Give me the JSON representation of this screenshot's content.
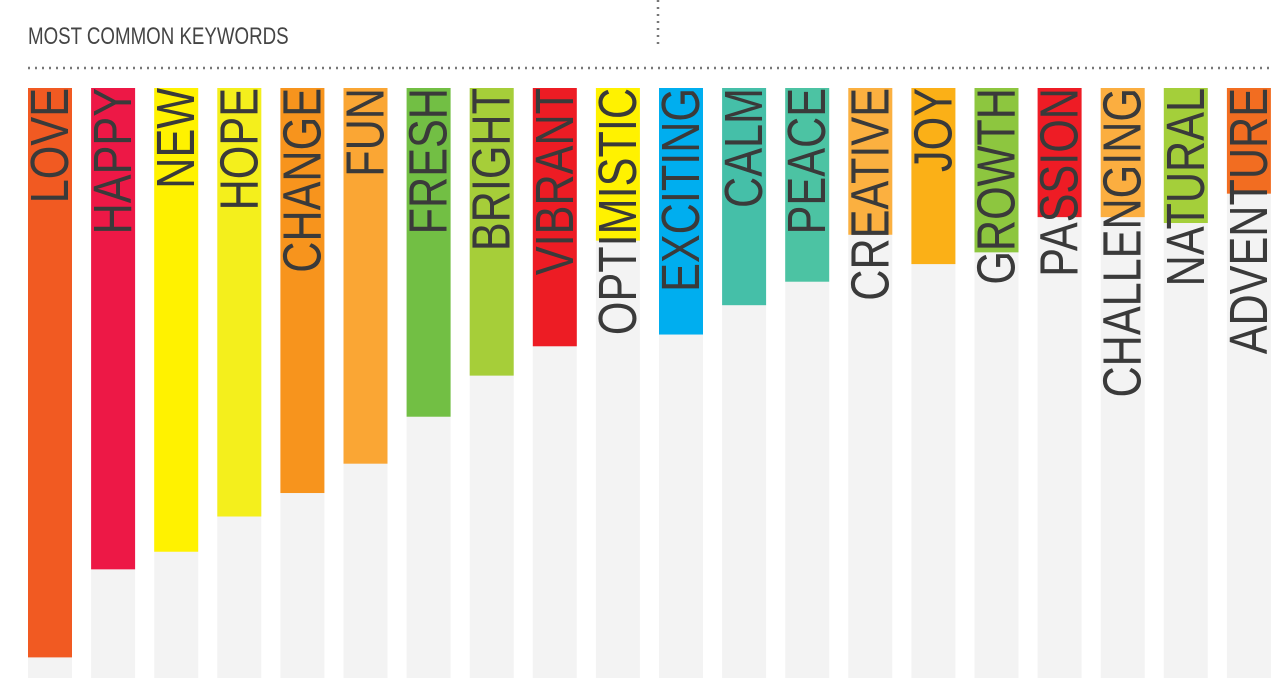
{
  "chart_data": {
    "type": "bar",
    "title": "MOST COMMON KEYWORDS",
    "categories": [
      "LOVE",
      "HAPPY",
      "NEW",
      "HOPE",
      "CHANGE",
      "FUN",
      "FRESH",
      "BRIGHT",
      "VIBRANT",
      "OPTIMISTIC",
      "EXCITING",
      "CALM",
      "PEACE",
      "CREATIVE",
      "JOY",
      "GROWTH",
      "PASSION",
      "CHALLENGING",
      "NATURAL",
      "ADVENTURE"
    ],
    "values": [
      97,
      82,
      79,
      73,
      69,
      64,
      56,
      49,
      44,
      26,
      42,
      37,
      33,
      25,
      30,
      28,
      22,
      22,
      23,
      18
    ],
    "colors": [
      "#f15a22",
      "#ed1846",
      "#fff200",
      "#f4ef1c",
      "#f7941d",
      "#faa634",
      "#72bf44",
      "#a6ce39",
      "#ed1c24",
      "#fff200",
      "#00aeef",
      "#45bfa8",
      "#4cc3a3",
      "#fbb040",
      "#fbb017",
      "#8dc63f",
      "#ee1c25",
      "#fbae40",
      "#a4cf3a",
      "#f26d21"
    ],
    "ylim": [
      0,
      100
    ]
  }
}
